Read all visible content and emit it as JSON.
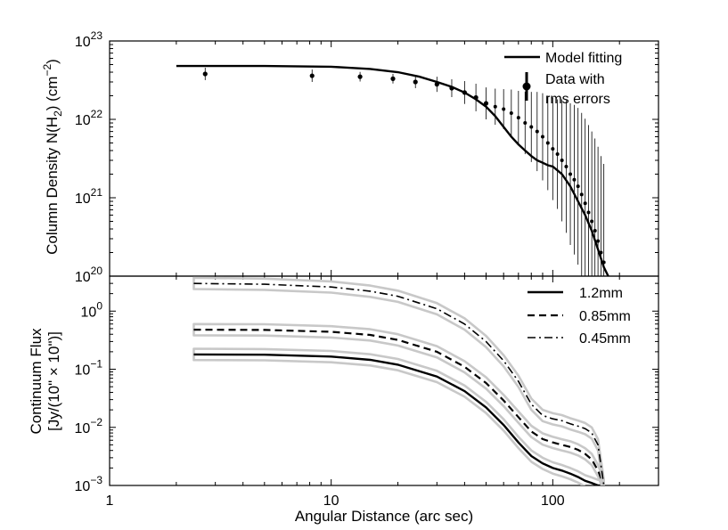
{
  "chart_data": [
    {
      "type": "scatter",
      "panel": "top",
      "ylabel_main": "Column Density N(H",
      "ylabel_sub": "2",
      "ylabel_tail": ") (cm",
      "ylabel_sup": "−2",
      "ylabel_end": ")",
      "xscale": "log",
      "yscale": "log",
      "xlim": [
        1,
        300
      ],
      "ylim": [
        1e+20,
        1e+23
      ],
      "ytick_labels": [
        {
          "value": 1e+20,
          "base": "10",
          "exp": "20"
        },
        {
          "value": 1e+21,
          "base": "10",
          "exp": "21"
        },
        {
          "value": 1e+22,
          "base": "10",
          "exp": "22"
        },
        {
          "value": 1e+23,
          "base": "10",
          "exp": "23"
        }
      ],
      "legend_position": "top-right",
      "series": [
        {
          "name": "Model fitting",
          "style": "solid",
          "x": [
            2,
            5,
            10,
            15,
            20,
            25,
            30,
            35,
            40,
            45,
            50,
            55,
            60,
            65,
            70,
            75,
            80,
            85,
            90,
            95,
            100,
            110,
            120,
            130,
            140,
            150,
            160,
            170,
            178
          ],
          "y": [
            4.8e+22,
            4.8e+22,
            4.7e+22,
            4.4e+22,
            4e+22,
            3.5e+22,
            3e+22,
            2.6e+22,
            2.2e+22,
            1.8e+22,
            1.45e+22,
            1.1e+22,
            8e+21,
            6e+21,
            4.8e+21,
            4e+21,
            3.4e+21,
            3e+21,
            2.8e+21,
            2.6e+21,
            2.5e+21,
            2e+21,
            1.4e+21,
            9e+20,
            6e+20,
            3.8e+20,
            2.2e+20,
            1.3e+20,
            1e+20
          ]
        },
        {
          "name_line1": "Data with",
          "name_line2": "rms errors",
          "style": "points-errorbars",
          "x": [
            2.7,
            8.2,
            13.5,
            19,
            24,
            30,
            35,
            40,
            45,
            50,
            55,
            60,
            65,
            70,
            75,
            80,
            85,
            90,
            95,
            100,
            105,
            110,
            115,
            120,
            125,
            130,
            135,
            140,
            145,
            150,
            155,
            160,
            165,
            170
          ],
          "y": [
            3.8e+22,
            3.6e+22,
            3.5e+22,
            3.3e+22,
            3e+22,
            2.8e+22,
            2.5e+22,
            2.2e+22,
            1.9e+22,
            1.6e+22,
            1.45e+22,
            1.35e+22,
            1.2e+22,
            1.05e+22,
            9e+21,
            8e+21,
            7e+21,
            6e+21,
            5e+21,
            4.2e+21,
            3.6e+21,
            3e+21,
            2.5e+21,
            2e+21,
            1.7e+21,
            1.4e+21,
            1.1e+21,
            8.5e+20,
            6.5e+20,
            5e+20,
            3.8e+20,
            2.8e+20,
            2e+20,
            1.5e+20
          ],
          "err_factor": [
            1.2,
            1.2,
            1.15,
            1.15,
            1.2,
            1.25,
            1.3,
            1.4,
            1.5,
            1.6,
            1.7,
            1.8,
            2.0,
            2.2,
            2.5,
            2.8,
            3.2,
            3.6,
            4.0,
            4.5,
            5.0,
            6.0,
            7.0,
            8.0,
            9.0,
            10.0,
            11.0,
            12.0,
            13.0,
            14.0,
            15.0,
            16.0,
            17.0,
            18.0
          ]
        }
      ]
    },
    {
      "type": "line",
      "panel": "bottom",
      "xlabel": "Angular Distance (arc sec)",
      "ylabel_line1": "Continuum Flux",
      "ylabel_line2": "[Jy/(10\" × 10\")]",
      "xscale": "log",
      "yscale": "log",
      "xlim": [
        1,
        300
      ],
      "ylim": [
        0.001,
        4
      ],
      "xtick_labels": [
        {
          "value": 1,
          "label": "1"
        },
        {
          "value": 10,
          "label": "10"
        },
        {
          "value": 100,
          "label": "100"
        }
      ],
      "ytick_labels": [
        {
          "value": 0.001,
          "base": "10",
          "exp": "−3"
        },
        {
          "value": 0.01,
          "base": "10",
          "exp": "−2"
        },
        {
          "value": 0.1,
          "base": "10",
          "exp": "−1"
        },
        {
          "value": 1,
          "base": "10",
          "exp": "0"
        }
      ],
      "legend_position": "top-right",
      "band_color": "#c8c8c8",
      "series": [
        {
          "name": "1.2mm",
          "style": "solid",
          "x": [
            2.4,
            5,
            10,
            15,
            20,
            30,
            40,
            50,
            60,
            70,
            80,
            90,
            100,
            110,
            120,
            130,
            140,
            150,
            160,
            170
          ],
          "y": [
            0.18,
            0.178,
            0.165,
            0.145,
            0.12,
            0.075,
            0.042,
            0.022,
            0.011,
            0.0055,
            0.0032,
            0.0024,
            0.002,
            0.0018,
            0.0016,
            0.0014,
            0.0012,
            0.0011,
            0.001,
            0.001
          ]
        },
        {
          "name": "0.85mm",
          "style": "dashed",
          "x": [
            2.4,
            5,
            10,
            15,
            20,
            30,
            40,
            50,
            60,
            70,
            80,
            90,
            100,
            110,
            120,
            130,
            140,
            150,
            160,
            170
          ],
          "y": [
            0.48,
            0.475,
            0.44,
            0.39,
            0.32,
            0.2,
            0.11,
            0.058,
            0.029,
            0.015,
            0.0085,
            0.0063,
            0.0055,
            0.005,
            0.0046,
            0.0041,
            0.0035,
            0.0028,
            0.0018,
            0.001
          ]
        },
        {
          "name": "0.45mm",
          "style": "dashdot",
          "x": [
            2.4,
            5,
            10,
            15,
            20,
            30,
            40,
            50,
            60,
            70,
            80,
            90,
            100,
            110,
            120,
            130,
            140,
            150,
            160,
            170
          ],
          "y": [
            3.0,
            2.9,
            2.6,
            2.2,
            1.8,
            1.1,
            0.6,
            0.3,
            0.14,
            0.062,
            0.025,
            0.016,
            0.014,
            0.013,
            0.0115,
            0.0105,
            0.0095,
            0.008,
            0.005,
            0.001
          ]
        }
      ]
    }
  ]
}
